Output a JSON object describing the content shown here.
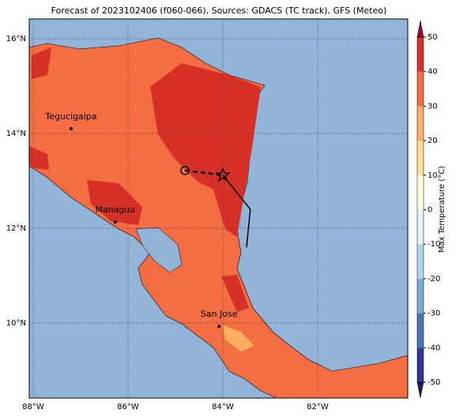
{
  "chart_data": {
    "type": "map",
    "title": "Forecast of 2023102406 (f060-066), Sources: GDACS (TC track), GFS (Meteo)",
    "lonlim": [
      -88.083,
      -80.1
    ],
    "latlim": [
      8.417,
      16.417
    ],
    "lonticks": [
      {
        "value": -88,
        "label": "88°W"
      },
      {
        "value": -86,
        "label": "86°W"
      },
      {
        "value": -84,
        "label": "84°W"
      },
      {
        "value": -82,
        "label": "82°W"
      }
    ],
    "latticks": [
      {
        "value": 10,
        "label": "10°N"
      },
      {
        "value": 12,
        "label": "12°N"
      },
      {
        "value": 14,
        "label": "14°N"
      },
      {
        "value": 16,
        "label": "16°N"
      }
    ],
    "grid": true,
    "cities": [
      {
        "name": "Tegucigalpa",
        "lon": -87.2,
        "lat": 14.1
      },
      {
        "name": "Managua",
        "lon": -86.27,
        "lat": 12.13
      },
      {
        "name": "San Jose",
        "lon": -84.08,
        "lat": 9.93
      }
    ],
    "track": {
      "lon": [
        -84.8,
        -84.0,
        -83.42,
        -83.5
      ],
      "lat": [
        13.22,
        13.12,
        12.4,
        11.6
      ]
    },
    "colorbar": {
      "label": "Max Temperature (°C)",
      "ticks": [
        -50,
        -40,
        -30,
        -20,
        -10,
        0,
        10,
        20,
        30,
        40,
        50
      ],
      "colors": [
        "#313695",
        "#4575b4",
        "#74add1",
        "#abd9e9",
        "#e0f3f8",
        "#ffffd9",
        "#fee090",
        "#fdae61",
        "#f46d43",
        "#d73027"
      ],
      "under": "#1a1a5e",
      "over": "#a50026"
    }
  }
}
